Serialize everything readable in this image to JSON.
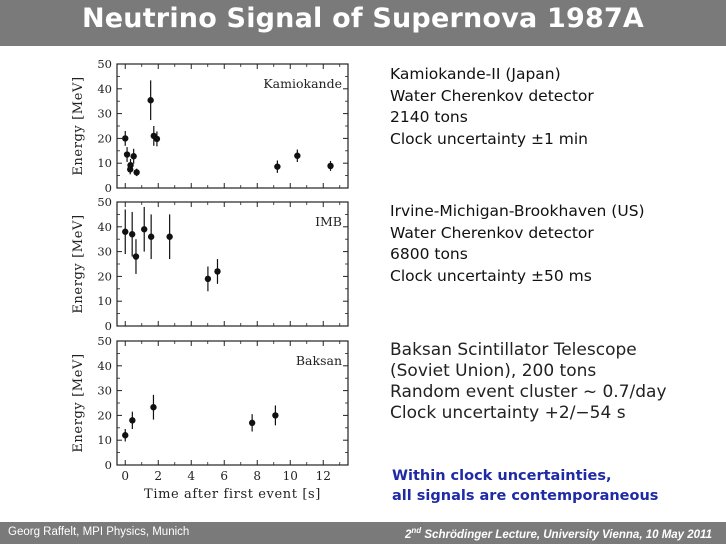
{
  "title": "Neutrino Signal of Supernova 1987A",
  "chart_data": [
    {
      "type": "scatter",
      "panel_label": "Kamiokande",
      "ylabel": "Energy [MeV]",
      "xlabel": "",
      "ylim": [
        0,
        50
      ],
      "xlim": [
        -0.5,
        13.5
      ],
      "yticks": [
        0,
        10,
        20,
        30,
        40,
        50
      ],
      "xticks": [
        0,
        2,
        4,
        6,
        8,
        10,
        12
      ],
      "points": [
        {
          "x": 0.0,
          "y": 20,
          "err": 3
        },
        {
          "x": 0.11,
          "y": 13.5,
          "err": 3
        },
        {
          "x": 0.3,
          "y": 7.5,
          "err": 2
        },
        {
          "x": 0.32,
          "y": 9.2,
          "err": 2.5
        },
        {
          "x": 0.51,
          "y": 12.8,
          "err": 3
        },
        {
          "x": 0.69,
          "y": 6.3,
          "err": 1.5
        },
        {
          "x": 1.54,
          "y": 35.4,
          "err": 8
        },
        {
          "x": 1.73,
          "y": 21.0,
          "err": 4
        },
        {
          "x": 1.92,
          "y": 19.8,
          "err": 3
        },
        {
          "x": 9.22,
          "y": 8.6,
          "err": 2.5
        },
        {
          "x": 10.43,
          "y": 13.0,
          "err": 2.5
        },
        {
          "x": 12.44,
          "y": 8.9,
          "err": 2
        }
      ]
    },
    {
      "type": "scatter",
      "panel_label": "IMB",
      "ylabel": "Energy [MeV]",
      "xlabel": "",
      "ylim": [
        0,
        50
      ],
      "xlim": [
        -0.5,
        13.5
      ],
      "yticks": [
        0,
        10,
        20,
        30,
        40,
        50
      ],
      "xticks": [
        0,
        2,
        4,
        6,
        8,
        10,
        12
      ],
      "points": [
        {
          "x": 0.0,
          "y": 38,
          "err": 9
        },
        {
          "x": 0.42,
          "y": 37,
          "err": 9
        },
        {
          "x": 0.65,
          "y": 28,
          "err": 7
        },
        {
          "x": 1.15,
          "y": 39,
          "err": 9
        },
        {
          "x": 1.57,
          "y": 36,
          "err": 9
        },
        {
          "x": 2.69,
          "y": 36,
          "err": 9
        },
        {
          "x": 5.01,
          "y": 19,
          "err": 5
        },
        {
          "x": 5.59,
          "y": 22,
          "err": 5
        }
      ]
    },
    {
      "type": "scatter",
      "panel_label": "Baksan",
      "ylabel": "Energy [MeV]",
      "xlabel": "Time after first event [s]",
      "ylim": [
        0,
        50
      ],
      "xlim": [
        -0.5,
        13.5
      ],
      "yticks": [
        0,
        10,
        20,
        30,
        40,
        50
      ],
      "xticks": [
        0,
        2,
        4,
        6,
        8,
        10,
        12
      ],
      "points": [
        {
          "x": 0.0,
          "y": 12,
          "err": 2.5
        },
        {
          "x": 0.43,
          "y": 18,
          "err": 3.5
        },
        {
          "x": 1.71,
          "y": 23.3,
          "err": 5
        },
        {
          "x": 7.69,
          "y": 17,
          "err": 3.5
        },
        {
          "x": 9.1,
          "y": 20,
          "err": 4
        }
      ]
    }
  ],
  "descriptions": [
    {
      "lines": [
        "Kamiokande-II (Japan)",
        "Water Cherenkov detector",
        "2140 tons",
        "Clock uncertainty  ±1 min"
      ]
    },
    {
      "lines": [
        "Irvine-Michigan-Brookhaven (US)",
        "Water Cherenkov detector",
        "6800 tons",
        "Clock uncertainty  ±50 ms"
      ]
    },
    {
      "lines": [
        "Baksan Scintillator Telescope",
        "(Soviet Union), 200 tons",
        "Random event cluster ~ 0.7/day",
        "Clock uncertainty  +2/−54 s"
      ]
    }
  ],
  "note": [
    "Within clock uncertainties,",
    "all signals are contemporaneous"
  ],
  "footer": {
    "left": "Georg Raffelt, MPI Physics, Munich",
    "right_ord": "2",
    "right_sup": "nd",
    "right_rest": " Schrödinger Lecture, University Vienna, 10 May 2011"
  },
  "colors": {
    "bar": "#7a7a7a",
    "note": "#1f2aa6"
  }
}
